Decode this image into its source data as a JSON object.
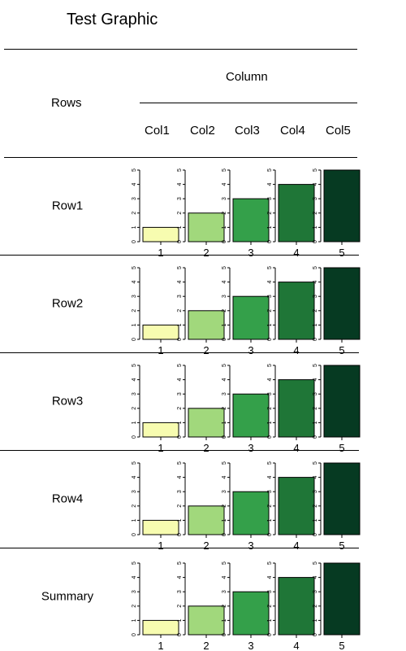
{
  "title": "Test Graphic",
  "header": {
    "rows_label": "Rows",
    "column_label": "Column",
    "columns": [
      "Col1",
      "Col2",
      "Col3",
      "Col4",
      "Col5"
    ]
  },
  "rows": [
    "Row1",
    "Row2",
    "Row3",
    "Row4",
    "Summary"
  ],
  "colors": [
    "#f7fcb0",
    "#a1d87c",
    "#34a04a",
    "#1f7637",
    "#063a22"
  ],
  "chart_data": {
    "type": "bar",
    "description_units": "value",
    "ylim": [
      0,
      5
    ],
    "y_ticks": [
      "0",
      "1",
      "2",
      "3",
      "4",
      "5"
    ],
    "x_ticks": [
      "1",
      "2",
      "3",
      "4",
      "5"
    ],
    "cells": [
      {
        "row": "Row1",
        "values": [
          1,
          2,
          3,
          4,
          5
        ]
      },
      {
        "row": "Row2",
        "values": [
          1,
          2,
          3,
          4,
          5
        ]
      },
      {
        "row": "Row3",
        "values": [
          1,
          2,
          3,
          4,
          5
        ]
      },
      {
        "row": "Row4",
        "values": [
          1,
          2,
          3,
          4,
          5
        ]
      },
      {
        "row": "Summary",
        "values": [
          1,
          2,
          3,
          4,
          5
        ]
      }
    ]
  }
}
